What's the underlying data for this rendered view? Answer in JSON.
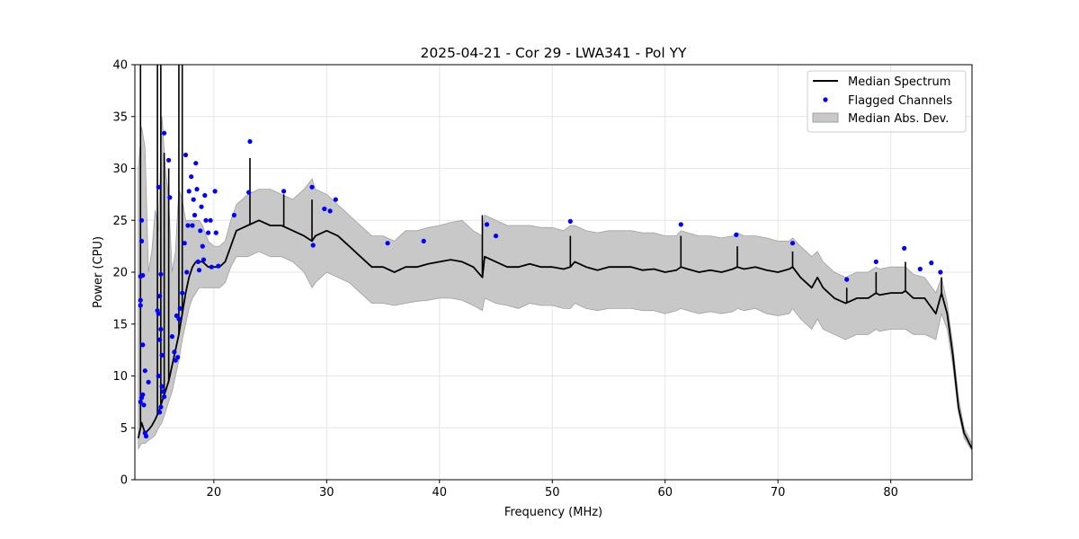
{
  "chart_data": {
    "type": "line",
    "title": "2025-04-21 - Cor 29 - LWA341 - Pol YY",
    "xlabel": "Frequency (MHz)",
    "ylabel": "Power (CPU)",
    "xlim": [
      13.0,
      87.2
    ],
    "ylim": [
      0,
      40
    ],
    "xticks": [
      20,
      30,
      40,
      50,
      60,
      70,
      80
    ],
    "yticks": [
      0,
      5,
      10,
      15,
      20,
      25,
      30,
      35,
      40
    ],
    "xtick_labels": [
      "20",
      "30",
      "40",
      "50",
      "60",
      "70",
      "80"
    ],
    "ytick_labels": [
      "0",
      "5",
      "10",
      "15",
      "20",
      "25",
      "30",
      "35",
      "40"
    ],
    "grid": true,
    "legend_position": "top-right",
    "legend": [
      "Median Spectrum",
      "Flagged Channels",
      "Median Abs. Dev."
    ],
    "colors": {
      "median": "#000000",
      "flagged": "#0000ff",
      "mad_fill": "#c8c8c8",
      "mad_edge": "#a0a0a0",
      "grid": "#e6e6e6"
    },
    "series": [
      {
        "name": "Median Spectrum",
        "x": [
          13.3,
          13.6,
          13.9,
          14.2,
          14.5,
          14.8,
          15.1,
          15.4,
          15.7,
          16.0,
          16.3,
          16.6,
          16.9,
          17.2,
          17.5,
          17.8,
          18.1,
          18.4,
          18.7,
          19.0,
          19.5,
          20.0,
          20.5,
          21.0,
          21.5,
          22.0,
          23.0,
          24.0,
          25.0,
          26.0,
          27.0,
          28.0,
          28.7,
          29.0,
          30.0,
          31.0,
          32.0,
          33.0,
          34.0,
          35.0,
          36.0,
          37.0,
          38.0,
          39.0,
          40.0,
          41.0,
          42.0,
          43.0,
          43.8,
          44.0,
          45.0,
          46.0,
          47.0,
          48.0,
          49.0,
          50.0,
          51.0,
          51.6,
          52.0,
          53.0,
          54.0,
          55.0,
          56.0,
          57.0,
          58.0,
          59.0,
          60.0,
          61.0,
          61.4,
          62.0,
          63.0,
          64.0,
          65.0,
          66.0,
          66.4,
          67.0,
          68.0,
          69.0,
          70.0,
          71.0,
          71.3,
          72.0,
          73.0,
          73.5,
          74.0,
          75.0,
          76.0,
          77.0,
          78.0,
          78.7,
          79.0,
          80.0,
          81.0,
          81.3,
          82.0,
          83.0,
          84.0,
          84.5,
          85.0,
          85.5,
          86.0,
          86.5,
          87.2
        ],
        "y": [
          4.0,
          5.5,
          4.5,
          4.8,
          5.2,
          5.8,
          6.5,
          7.5,
          8.5,
          9.5,
          11.0,
          12.5,
          14.0,
          16.0,
          18.0,
          19.5,
          20.5,
          21.0,
          21.0,
          21.0,
          20.5,
          20.5,
          20.5,
          21.0,
          22.5,
          24.0,
          24.5,
          25.0,
          24.5,
          24.5,
          24.0,
          23.5,
          23.0,
          23.5,
          24.0,
          23.5,
          22.5,
          21.5,
          20.5,
          20.5,
          20.0,
          20.5,
          20.5,
          20.8,
          21.0,
          21.2,
          21.0,
          20.5,
          19.5,
          21.5,
          21.0,
          20.5,
          20.5,
          20.8,
          20.5,
          20.5,
          20.3,
          20.5,
          21.0,
          20.5,
          20.2,
          20.5,
          20.5,
          20.5,
          20.2,
          20.3,
          20.0,
          20.2,
          20.5,
          20.3,
          20.0,
          20.2,
          20.0,
          20.3,
          20.5,
          20.3,
          20.5,
          20.2,
          20.0,
          20.3,
          20.5,
          19.5,
          18.5,
          19.5,
          18.5,
          17.5,
          17.0,
          17.5,
          17.5,
          18.0,
          17.8,
          18.0,
          18.0,
          18.2,
          17.5,
          17.5,
          16.0,
          18.0,
          16.0,
          12.0,
          7.0,
          4.5,
          3.0
        ]
      },
      {
        "name": "Median Abs. Dev.",
        "x": [
          13.3,
          13.6,
          13.9,
          14.2,
          14.5,
          14.8,
          15.1,
          15.4,
          15.7,
          16.0,
          16.3,
          16.6,
          16.9,
          17.2,
          17.5,
          17.8,
          18.1,
          18.4,
          18.7,
          19.0,
          19.5,
          20.0,
          20.5,
          21.0,
          21.5,
          22.0,
          23.0,
          24.0,
          25.0,
          26.0,
          27.0,
          28.0,
          28.7,
          29.0,
          30.0,
          31.0,
          32.0,
          33.0,
          34.0,
          35.0,
          36.0,
          37.0,
          38.0,
          39.0,
          40.0,
          41.0,
          42.0,
          43.0,
          43.8,
          44.0,
          45.0,
          46.0,
          47.0,
          48.0,
          49.0,
          50.0,
          51.0,
          51.6,
          52.0,
          53.0,
          54.0,
          55.0,
          56.0,
          57.0,
          58.0,
          59.0,
          60.0,
          61.0,
          61.4,
          62.0,
          63.0,
          64.0,
          65.0,
          66.0,
          66.4,
          67.0,
          68.0,
          69.0,
          70.0,
          71.0,
          71.3,
          72.0,
          73.0,
          73.5,
          74.0,
          75.0,
          76.0,
          77.0,
          78.0,
          78.7,
          79.0,
          80.0,
          81.0,
          81.3,
          82.0,
          83.0,
          84.0,
          84.5,
          85.0,
          85.5,
          86.0,
          86.5,
          87.2
        ],
        "upper": [
          30,
          34,
          32,
          20,
          22,
          26,
          24,
          35,
          30,
          27,
          20,
          22,
          28,
          27,
          25,
          25,
          25,
          25,
          25,
          24.5,
          23,
          22.5,
          22.5,
          23,
          25,
          26.5,
          27.5,
          28,
          28,
          27.5,
          27,
          28,
          29,
          28,
          27.5,
          26.5,
          25.5,
          24.5,
          23.5,
          23.5,
          23,
          24,
          24,
          24.3,
          24.5,
          24.8,
          25,
          24,
          23.5,
          25.5,
          25,
          24.5,
          24.5,
          24.5,
          24.3,
          24.3,
          24,
          24.5,
          24.5,
          24,
          23.8,
          24,
          24,
          24,
          23.8,
          23.8,
          23.5,
          23.5,
          24,
          23.8,
          23.5,
          23.5,
          23.3,
          23.5,
          23.8,
          23.5,
          23.5,
          23.3,
          23,
          23,
          23.3,
          22.5,
          21.5,
          22,
          21,
          20,
          19.5,
          20,
          20,
          20.5,
          20.3,
          20.5,
          20.5,
          20.5,
          19.8,
          19.5,
          18,
          19.5,
          17,
          13,
          8,
          5,
          3.5
        ],
        "lower": [
          3.0,
          3.5,
          3.5,
          3.8,
          4.0,
          4.3,
          5.0,
          5.5,
          6.5,
          7.5,
          8.5,
          10.0,
          11.5,
          13.5,
          15.0,
          16.5,
          17.5,
          18.0,
          18.5,
          18.5,
          18.5,
          18.5,
          18.5,
          19.0,
          20.5,
          21.5,
          21.5,
          22.0,
          21.5,
          21.5,
          21.0,
          20.0,
          18.5,
          19.0,
          20.0,
          19.5,
          19.0,
          18.0,
          17.0,
          17.0,
          16.8,
          17.0,
          17.2,
          17.3,
          17.5,
          17.5,
          17.3,
          16.8,
          16.3,
          17.5,
          17.0,
          16.8,
          16.5,
          17.0,
          16.8,
          16.8,
          16.5,
          16.5,
          17.0,
          16.5,
          16.3,
          16.5,
          16.5,
          16.5,
          16.3,
          16.3,
          16.0,
          16.3,
          16.5,
          16.3,
          16.0,
          16.2,
          16.0,
          16.2,
          16.5,
          16.3,
          16.5,
          16.0,
          15.8,
          16.0,
          16.5,
          15.5,
          14.5,
          15.5,
          14.5,
          14.0,
          13.5,
          14.0,
          14.0,
          14.5,
          14.3,
          14.5,
          14.5,
          14.5,
          14.0,
          14.0,
          13.5,
          16.0,
          14.5,
          11.0,
          6.5,
          4.0,
          2.8
        ]
      }
    ],
    "spikes": [
      {
        "x": 13.5,
        "y": 40
      },
      {
        "x": 15.0,
        "y": 40
      },
      {
        "x": 15.3,
        "y": 40
      },
      {
        "x": 15.6,
        "y": 31.5
      },
      {
        "x": 16.0,
        "y": 30
      },
      {
        "x": 16.9,
        "y": 40
      },
      {
        "x": 17.2,
        "y": 40
      },
      {
        "x": 23.2,
        "y": 31
      },
      {
        "x": 26.2,
        "y": 27.5
      },
      {
        "x": 28.7,
        "y": 27
      },
      {
        "x": 43.8,
        "y": 25.5
      },
      {
        "x": 51.6,
        "y": 23.5
      },
      {
        "x": 61.4,
        "y": 23.5
      },
      {
        "x": 66.4,
        "y": 22.5
      },
      {
        "x": 71.3,
        "y": 22
      },
      {
        "x": 76.1,
        "y": 18.5
      },
      {
        "x": 78.7,
        "y": 20
      },
      {
        "x": 81.3,
        "y": 21
      },
      {
        "x": 84.5,
        "y": 19.5
      }
    ],
    "flagged_channels": {
      "name": "Flagged Channels",
      "points": [
        [
          13.5,
          19.6
        ],
        [
          13.5,
          17.3
        ],
        [
          13.5,
          16.8
        ],
        [
          13.6,
          25.0
        ],
        [
          13.6,
          23.0
        ],
        [
          13.7,
          19.7
        ],
        [
          13.7,
          13.0
        ],
        [
          13.9,
          10.5
        ],
        [
          13.7,
          8.2
        ],
        [
          13.5,
          7.5
        ],
        [
          13.8,
          7.2
        ],
        [
          13.9,
          4.5
        ],
        [
          14.0,
          4.2
        ],
        [
          14.2,
          9.4
        ],
        [
          13.6,
          7.9
        ],
        [
          15.1,
          28.2
        ],
        [
          15.3,
          19.8
        ],
        [
          15.2,
          17.7
        ],
        [
          15.0,
          16.3
        ],
        [
          15.1,
          16.0
        ],
        [
          15.3,
          14.5
        ],
        [
          15.2,
          13.5
        ],
        [
          15.4,
          12.0
        ],
        [
          15.1,
          10.0
        ],
        [
          15.4,
          9.0
        ],
        [
          15.5,
          8.5
        ],
        [
          15.6,
          8.0
        ],
        [
          15.3,
          7.0
        ],
        [
          15.2,
          6.5
        ],
        [
          15.6,
          33.4
        ],
        [
          16.0,
          30.8
        ],
        [
          16.1,
          27.2
        ],
        [
          16.3,
          13.8
        ],
        [
          16.5,
          12.3
        ],
        [
          16.7,
          15.8
        ],
        [
          16.8,
          11.8
        ],
        [
          16.6,
          11.5
        ],
        [
          16.9,
          15.5
        ],
        [
          17.0,
          16.5
        ],
        [
          17.2,
          18.0
        ],
        [
          17.4,
          22.8
        ],
        [
          17.5,
          31.3
        ],
        [
          17.6,
          20.0
        ],
        [
          17.7,
          24.5
        ],
        [
          17.8,
          27.8
        ],
        [
          18.0,
          29.2
        ],
        [
          18.2,
          27.0
        ],
        [
          18.3,
          25.5
        ],
        [
          18.4,
          30.5
        ],
        [
          18.5,
          28.0
        ],
        [
          18.6,
          21.0
        ],
        [
          18.8,
          24.0
        ],
        [
          18.9,
          26.3
        ],
        [
          19.0,
          22.5
        ],
        [
          19.2,
          27.4
        ],
        [
          19.3,
          25.0
        ],
        [
          19.5,
          23.8
        ],
        [
          19.7,
          25.0
        ],
        [
          19.8,
          20.5
        ],
        [
          20.1,
          27.8
        ],
        [
          20.2,
          23.8
        ],
        [
          20.4,
          20.6
        ],
        [
          18.1,
          24.5
        ],
        [
          18.7,
          20.2
        ],
        [
          19.1,
          21.2
        ],
        [
          21.8,
          25.5
        ],
        [
          23.2,
          32.6
        ],
        [
          23.1,
          27.7
        ],
        [
          26.2,
          27.8
        ],
        [
          28.7,
          28.2
        ],
        [
          28.8,
          22.6
        ],
        [
          29.8,
          26.1
        ],
        [
          30.3,
          25.9
        ],
        [
          30.8,
          27.0
        ],
        [
          35.4,
          22.8
        ],
        [
          38.6,
          23.0
        ],
        [
          44.2,
          24.6
        ],
        [
          45.0,
          23.5
        ],
        [
          51.6,
          24.9
        ],
        [
          61.4,
          24.6
        ],
        [
          66.3,
          23.6
        ],
        [
          71.3,
          22.8
        ],
        [
          76.1,
          19.3
        ],
        [
          78.7,
          21.0
        ],
        [
          81.2,
          22.3
        ],
        [
          82.6,
          20.3
        ],
        [
          83.6,
          20.9
        ],
        [
          84.4,
          20.0
        ]
      ]
    }
  }
}
